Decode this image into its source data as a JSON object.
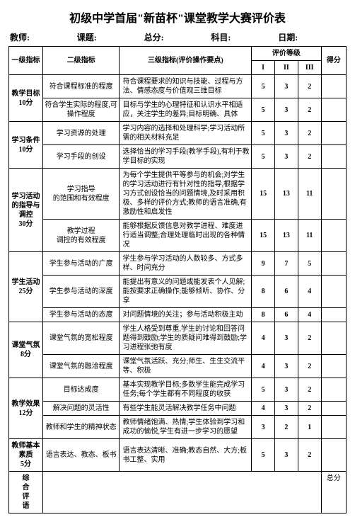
{
  "title": "初级中学首届\"新苗杯\"课堂教学大赛评价表",
  "header": {
    "teacher": "教师:",
    "lesson": "课题:",
    "total": "总分:",
    "subject": "科目:",
    "date": "日期:"
  },
  "cols": {
    "c1": "一级指标",
    "c2": "二级指标",
    "c3": "三级指标(评价操作要点)",
    "levels": "评价等级",
    "l1": "I",
    "l2": "II",
    "l3": "III",
    "score": "得分"
  },
  "cats": [
    {
      "name": "教学目标\n10分",
      "rows": [
        {
          "c2": "符合课程标准的程度",
          "c3": "符合课程要求的知识与技能、过程与方法、情感态度与价值观三维目标",
          "v": [
            "5",
            "3",
            "2"
          ]
        },
        {
          "c2": "符合学生实际的程度,可操作程度",
          "c3": "目标与学生的心理特征和认识水平相适应，关注学生的差异;目标明确、具体",
          "v": [
            "5",
            "3",
            "2"
          ]
        }
      ]
    },
    {
      "name": "学习条件\n10分",
      "rows": [
        {
          "c2": "学习资源的处理",
          "c3": "学习内容的选择和处理科学;学习活动所需的相关材料充足",
          "v": [
            "5",
            "3",
            "2"
          ]
        },
        {
          "c2": "学习手段的创设",
          "c3": "选择恰当的学习手段(教学手段),有利于教学目标的实现",
          "v": [
            "5",
            "3",
            "2"
          ]
        }
      ]
    },
    {
      "name": "学习活动的指导与调控\n30分",
      "rows": [
        {
          "c2": "学习指导\n的范围和有效程度",
          "c3": "为每个学生提供平等参与的机会;对学生的学习活动进行有针对性的指导,根据学习方式创设恰当的问题情境,及时采用积极、多样的评价方式;教师的语言准确,有激励性和启发性",
          "v": [
            "15",
            "13",
            "11"
          ],
          "tall": true
        },
        {
          "c2": "教学过程\n调控的有效程度",
          "c3": "能够根据反馈信息对教学进程、难度进行适当调整;合理处理临时出现的各种情况",
          "v": [
            "15",
            "13",
            "11"
          ]
        }
      ]
    },
    {
      "name": "学生活动\n25分",
      "rows": [
        {
          "c2": "学生参与活动的广度",
          "c3": "学生参与学习活动的人数较多、方式多样、时间充分",
          "v": [
            "9",
            "7",
            "5"
          ]
        },
        {
          "c2": "学生参与活动的深度",
          "c3": "能提出有意义的问题或能发表个人见解;能按要求正确操作;能够倾听、协作、分享",
          "v": [
            "8",
            "6",
            "4"
          ]
        },
        {
          "c2": "学生参与活动的态度",
          "c3": "对问题情境的关注；参与活动积极主动",
          "v": [
            "8",
            "6",
            "4"
          ]
        }
      ]
    },
    {
      "name": "课堂气氛\n8分",
      "rows": [
        {
          "c2": "课堂气氛的宽松程度",
          "c3": "学生人格受到尊重,学生的讨论和回答问题得到鼓励;学生的质疑问难得到鼓励;学习进程张弛有度",
          "v": [
            "4",
            "3",
            "2"
          ]
        },
        {
          "c2": "课堂气氛的融洽程度",
          "c3": "课堂气氛活跃、充分;师生、生生交流平等、积极",
          "v": [
            "4",
            "3",
            "2"
          ]
        }
      ]
    },
    {
      "name": "教学效果\n12分",
      "rows": [
        {
          "c2": "目标达成度",
          "c3": "基本实现教学目标;多数学生能完成学习任务;每个学生都有不同程度的收获",
          "v": [
            "5",
            "3",
            "2"
          ]
        },
        {
          "c2": "解决问题的灵活性",
          "c3": "有些学生能灵活解决教学任务中问题",
          "v": [
            "4",
            "3",
            "2"
          ]
        },
        {
          "c2": "教师和学生的精神状态",
          "c3": "教师情绪饱满、热情;学生体验到学习和成功的愉悦,学生有进一步学习的愿望",
          "v": [
            "3",
            "2",
            "1"
          ]
        }
      ]
    },
    {
      "name": "教师基本素质\n5分",
      "rows": [
        {
          "c2": "语言表达、教态、板书",
          "c3": "语言表达清晰、准确;教态自然、大方;板书工整、实用",
          "v": [
            "5",
            "3",
            "2"
          ]
        }
      ]
    }
  ],
  "summary": {
    "label": "综合评语",
    "total": "总分"
  }
}
